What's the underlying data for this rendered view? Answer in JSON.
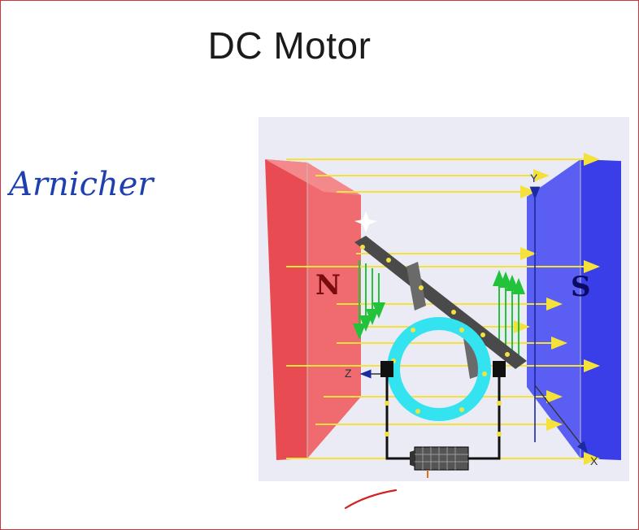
{
  "slide": {
    "title": "DC Motor",
    "handwriting": "Arnicher"
  },
  "diagram": {
    "pole_north_label": "N",
    "pole_south_label": "S",
    "axis_x_label": "X",
    "axis_y_label": "Y",
    "axis_z_label": "Z",
    "colors": {
      "north_pole": "#ef5a5f",
      "south_pole": "#4a4ef0",
      "field_lines": "#f4e23a",
      "force_arrows": "#22c23a",
      "ring": "#33e3f0",
      "coil": "#444444",
      "ink_blue": "#1e3fb0",
      "ink_red": "#d42020"
    },
    "icons": [
      "battery-icon",
      "brush-contact-icon"
    ]
  }
}
